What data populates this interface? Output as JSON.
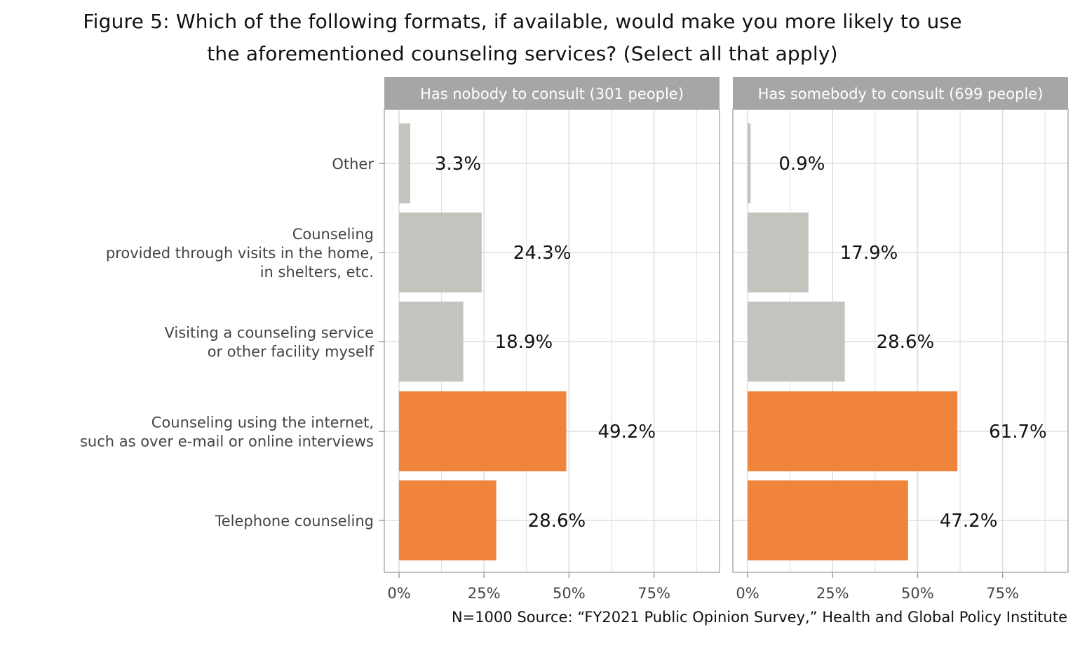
{
  "chart_data": {
    "type": "bar",
    "orientation": "horizontal",
    "title": "Figure 5: Which of the following formats, if available, would make you more likely to use the aforementioned counseling services? (Select all that apply)",
    "title_lines": [
      "Figure 5: Which of the following formats, if available, would make you more likely to use",
      "the aforementioned counseling services? (Select all that apply)"
    ],
    "caption": "N=1000 Source: “FY2021 Public Opinion Survey,” Health and Global Policy Institute",
    "categories": [
      [
        "Other"
      ],
      [
        "Counseling ",
        "provided through visits in the home, ",
        "in shelters, etc."
      ],
      [
        "Visiting a counseling service ",
        "or other facility myself"
      ],
      [
        "Counseling using the internet, ",
        "such as over e-mail or online interviews"
      ],
      [
        "Telephone counseling"
      ]
    ],
    "category_keys": [
      "Other",
      "Home/shelter visits",
      "Visiting facility",
      "Internet counseling",
      "Telephone counseling"
    ],
    "highlight": [
      false,
      false,
      false,
      true,
      true
    ],
    "colors": {
      "default": "#c4c3bd",
      "highlight": "#f0843a",
      "strip": "#a6a6a6",
      "grid": "#dedede",
      "panel_border": "#b3b3b3"
    },
    "xlim": [
      0,
      90
    ],
    "xticks": [
      0,
      25,
      50,
      75
    ],
    "xtick_labels": [
      "0%",
      "25%",
      "50%",
      "75%"
    ],
    "xlabel": "",
    "ylabel": "",
    "grid": true,
    "legend": "none",
    "panels": [
      {
        "name": "Has nobody to consult (301 people)",
        "values": [
          3.3,
          24.3,
          18.9,
          49.2,
          28.6
        ],
        "labels": [
          "3.3%",
          "24.3%",
          "18.9%",
          "49.2%",
          "28.6%"
        ]
      },
      {
        "name": "Has somebody to consult (699 people)",
        "values": [
          0.9,
          17.9,
          28.6,
          61.7,
          47.2
        ],
        "labels": [
          "0.9%",
          "17.9%",
          "28.6%",
          "61.7%",
          "47.2%"
        ]
      }
    ]
  }
}
